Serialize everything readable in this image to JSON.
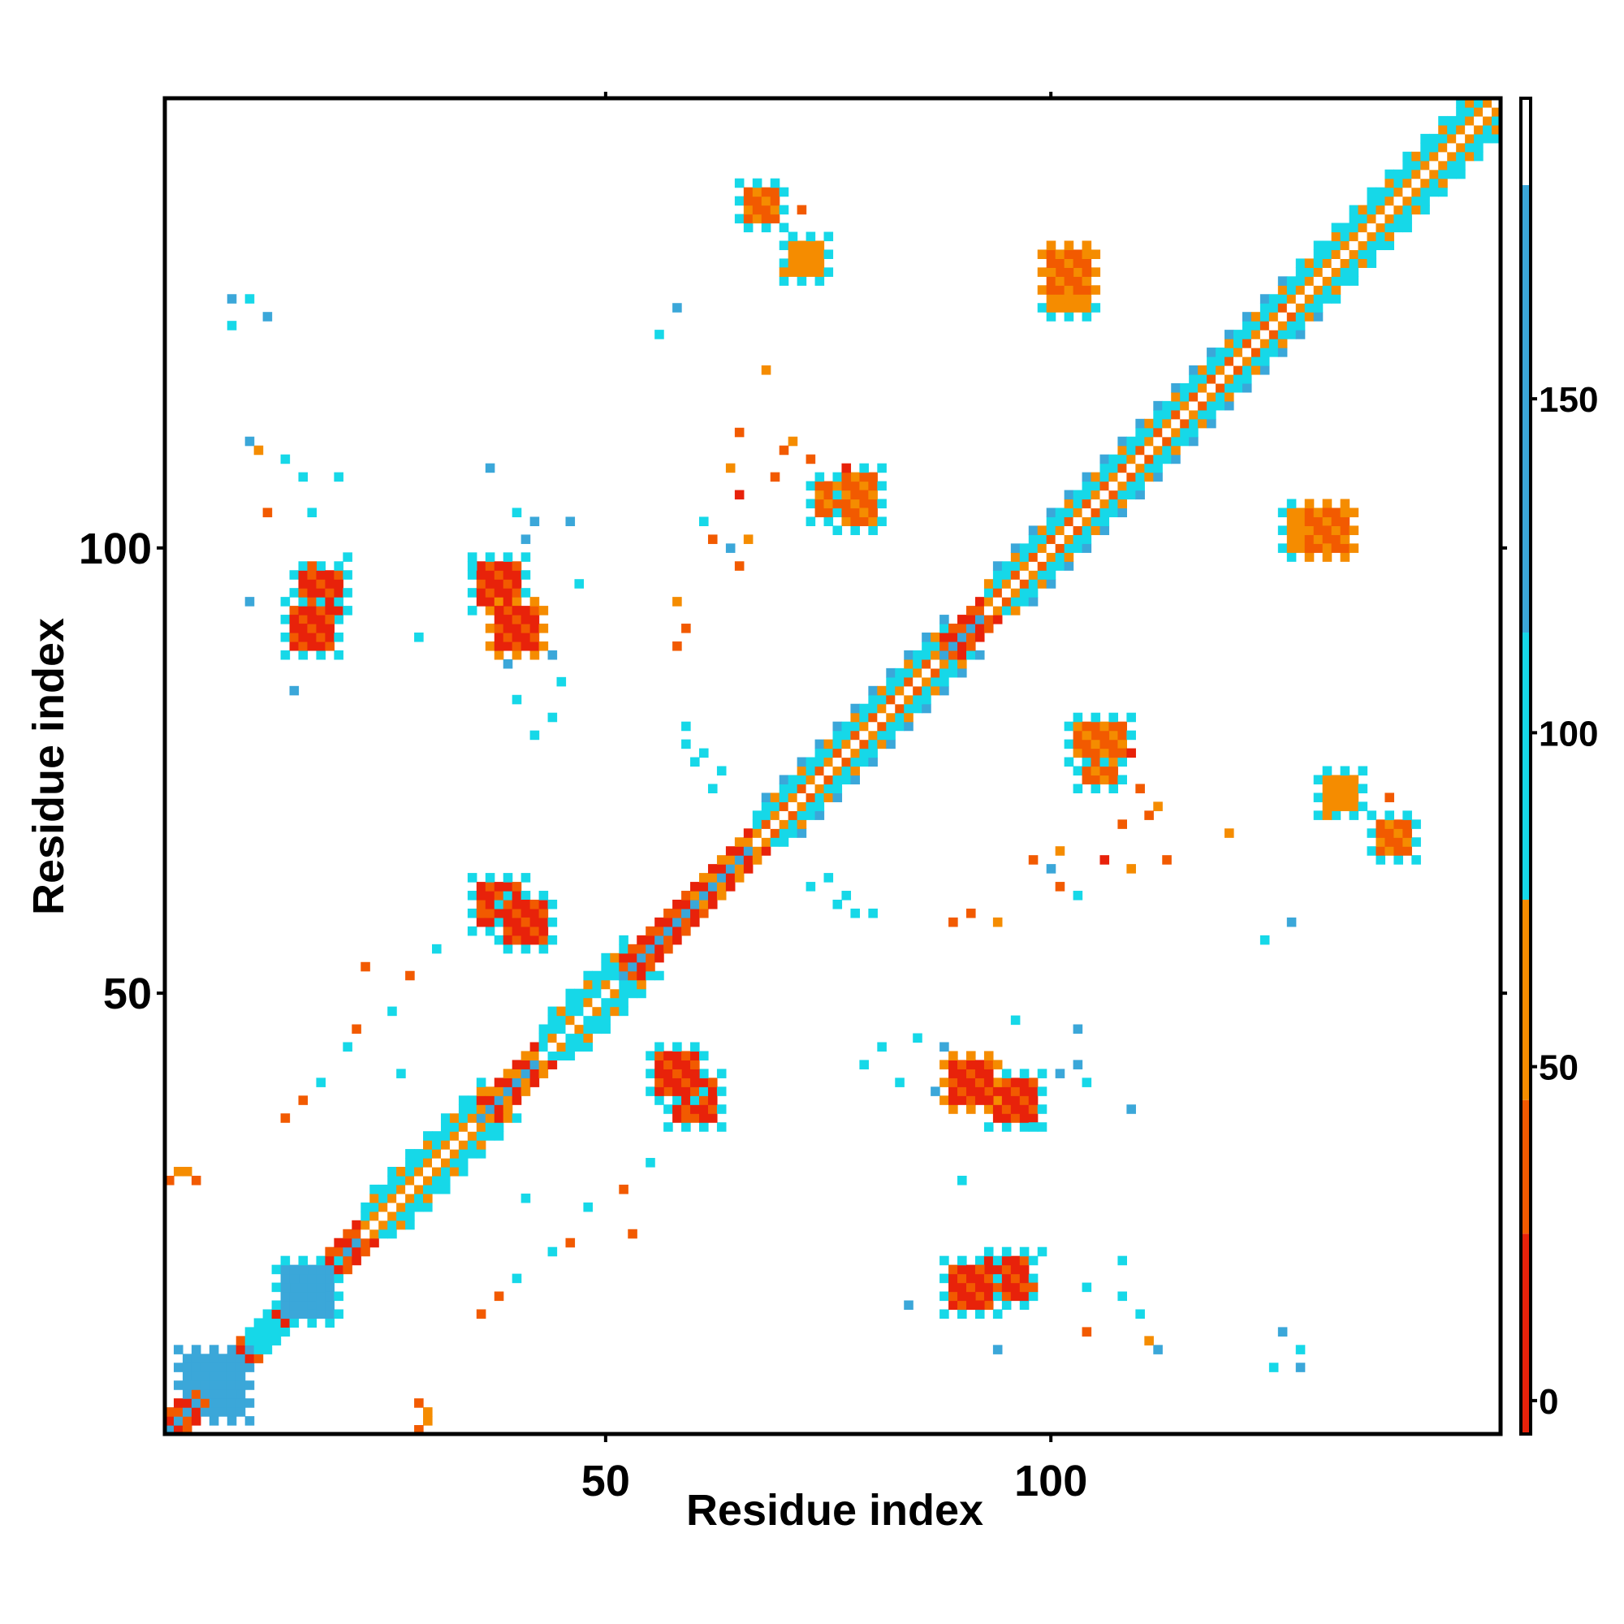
{
  "chart_data": {
    "type": "heatmap",
    "title": "",
    "xlabel": "Residue index",
    "ylabel": "Residue index",
    "xlim": [
      0.5,
      150.5
    ],
    "ylim": [
      0.5,
      150.5
    ],
    "xticks": [
      50,
      100
    ],
    "yticks": [
      50,
      100
    ],
    "symmetric": true,
    "diagonal_band": [
      {
        "from": 1,
        "to": 10,
        "pattern": "alternating",
        "v1": 10,
        "v2": 40
      },
      {
        "from": 10,
        "to": 13,
        "pattern": "fill",
        "v1": 95
      },
      {
        "from": 13,
        "to": 23,
        "pattern": "alternating",
        "v1": 10,
        "v2": 40
      },
      {
        "from": 23,
        "to": 36,
        "pattern": "helix",
        "v1": 50,
        "v2": 100
      },
      {
        "from": 36,
        "to": 43,
        "pattern": "alternating",
        "v1": 20,
        "v2": 55
      },
      {
        "from": 43,
        "to": 52,
        "pattern": "helix",
        "v1": 60,
        "v2": 100
      },
      {
        "from": 52,
        "to": 60,
        "pattern": "alternating",
        "v1": 5,
        "v2": 40
      },
      {
        "from": 60,
        "to": 67,
        "pattern": "alternating",
        "v1": 10,
        "v2": 55
      },
      {
        "from": 67,
        "to": 88,
        "pattern": "helix",
        "v1": 40,
        "v2": 105
      },
      {
        "from": 88,
        "to": 93,
        "pattern": "alternating",
        "v1": 5,
        "v2": 40
      },
      {
        "from": 93,
        "to": 112,
        "pattern": "helix",
        "v1": 40,
        "v2": 105
      },
      {
        "from": 112,
        "to": 128,
        "pattern": "helix",
        "v1": 40,
        "v2": 105
      },
      {
        "from": 128,
        "to": 150,
        "pattern": "helix",
        "v1": 45,
        "v2": 100
      }
    ],
    "off_diagonal_patches": [
      {
        "i0": 16,
        "i1": 20,
        "j0": 93,
        "j1": 97,
        "v": 10,
        "rim": 95
      },
      {
        "i0": 36,
        "i1": 40,
        "j0": 94,
        "j1": 98,
        "v": 10,
        "rim": 90
      },
      {
        "i0": 36,
        "i1": 40,
        "j0": 58,
        "j1": 62,
        "v": 10,
        "rim": 90
      },
      {
        "i0": 56,
        "i1": 60,
        "j0": 39,
        "j1": 43,
        "v": 10,
        "rim": 95
      },
      {
        "i0": 89,
        "i1": 93,
        "j0": 38,
        "j1": 42,
        "v": 10,
        "rim": 60
      },
      {
        "i0": 89,
        "i1": 93,
        "j0": 15,
        "j1": 19,
        "v": 10,
        "rim": 100
      },
      {
        "i0": 66,
        "i1": 69,
        "j0": 137,
        "j1": 140,
        "v": 40,
        "rim": 100
      },
      {
        "i0": 100,
        "i1": 104,
        "j0": 127,
        "j1": 130,
        "v": 45,
        "rim": 100
      },
      {
        "i0": 131,
        "i1": 134,
        "j0": 71,
        "j1": 74,
        "v": 45,
        "rim": 100
      },
      {
        "i0": 129,
        "i1": 133,
        "j0": 100,
        "j1": 104,
        "v": 30,
        "rim": 45
      },
      {
        "i0": 74,
        "i1": 78,
        "j0": 104,
        "j1": 107,
        "v": 40,
        "rim": 90
      },
      {
        "i0": 103,
        "i1": 108,
        "j0": 77,
        "j1": 80,
        "v": 40,
        "rim": 100
      },
      {
        "i0": 6,
        "i1": 9,
        "j0": 3,
        "j1": 9,
        "v": 135,
        "rim": 135
      },
      {
        "i0": 14,
        "i1": 19,
        "j0": 14,
        "j1": 19,
        "v": 130,
        "rim": 100
      }
    ],
    "scattered_contacts": [
      {
        "i": 10,
        "j": 128,
        "v": 100
      },
      {
        "i": 12,
        "j": 126,
        "v": 120
      },
      {
        "i": 11,
        "j": 111,
        "v": 90
      },
      {
        "i": 16,
        "j": 108,
        "v": 105
      },
      {
        "i": 17,
        "j": 104,
        "v": 110
      },
      {
        "i": 10,
        "j": 94,
        "v": 130
      },
      {
        "i": 15,
        "j": 84,
        "v": 120
      },
      {
        "i": 29,
        "j": 90,
        "v": 105
      },
      {
        "i": 42,
        "j": 103,
        "v": 130
      },
      {
        "i": 39,
        "j": 87,
        "v": 120
      },
      {
        "i": 40,
        "j": 83,
        "v": 110
      },
      {
        "i": 44,
        "j": 60,
        "v": 105
      },
      {
        "i": 31,
        "j": 55,
        "v": 110
      },
      {
        "i": 28,
        "j": 52,
        "v": 40
      },
      {
        "i": 58,
        "j": 94,
        "v": 50
      },
      {
        "i": 64,
        "j": 100,
        "v": 130
      },
      {
        "i": 66,
        "j": 101,
        "v": 45
      },
      {
        "i": 71,
        "j": 112,
        "v": 45
      },
      {
        "i": 73,
        "j": 110,
        "v": 40
      },
      {
        "i": 77,
        "j": 109,
        "v": 10
      },
      {
        "i": 65,
        "j": 98,
        "v": 30
      },
      {
        "i": 59,
        "j": 80,
        "v": 110
      },
      {
        "i": 61,
        "j": 77,
        "v": 100
      },
      {
        "i": 63,
        "j": 75,
        "v": 105
      },
      {
        "i": 73,
        "j": 62,
        "v": 100
      },
      {
        "i": 76,
        "j": 60,
        "v": 110
      },
      {
        "i": 78,
        "j": 59,
        "v": 95
      },
      {
        "i": 89,
        "j": 58,
        "v": 40
      },
      {
        "i": 91,
        "j": 59,
        "v": 30
      },
      {
        "i": 101,
        "j": 62,
        "v": 30
      },
      {
        "i": 103,
        "j": 61,
        "v": 95
      },
      {
        "i": 106,
        "j": 65,
        "v": 10
      },
      {
        "i": 109,
        "j": 64,
        "v": 45
      },
      {
        "i": 108,
        "j": 69,
        "v": 40
      },
      {
        "i": 111,
        "j": 70,
        "v": 25
      },
      {
        "i": 113,
        "j": 65,
        "v": 40
      },
      {
        "i": 120,
        "j": 68,
        "v": 45
      },
      {
        "i": 131,
        "j": 70,
        "v": 45
      },
      {
        "i": 138,
        "j": 72,
        "v": 40
      },
      {
        "i": 137,
        "j": 67,
        "v": 45
      },
      {
        "i": 127,
        "j": 58,
        "v": 120
      },
      {
        "i": 124,
        "j": 56,
        "v": 105
      },
      {
        "i": 101,
        "j": 41,
        "v": 120
      },
      {
        "i": 104,
        "j": 40,
        "v": 95
      },
      {
        "i": 109,
        "j": 37,
        "v": 130
      },
      {
        "i": 98,
        "j": 35,
        "v": 110
      },
      {
        "i": 103,
        "j": 46,
        "v": 130
      },
      {
        "i": 96,
        "j": 47,
        "v": 95
      },
      {
        "i": 79,
        "j": 42,
        "v": 100
      },
      {
        "i": 81,
        "j": 44,
        "v": 110
      },
      {
        "i": 85,
        "j": 45,
        "v": 105
      },
      {
        "i": 88,
        "j": 44,
        "v": 130
      },
      {
        "i": 94,
        "j": 16,
        "v": 95
      },
      {
        "i": 99,
        "j": 21,
        "v": 100
      },
      {
        "i": 108,
        "j": 20,
        "v": 110
      },
      {
        "i": 110,
        "j": 14,
        "v": 105
      },
      {
        "i": 112,
        "j": 10,
        "v": 115
      },
      {
        "i": 125,
        "j": 8,
        "v": 110
      },
      {
        "i": 128,
        "j": 8,
        "v": 120
      },
      {
        "i": 111,
        "j": 11,
        "v": 45
      },
      {
        "i": 104,
        "j": 12,
        "v": 40
      },
      {
        "i": 98,
        "j": 17,
        "v": 40
      },
      {
        "i": 29,
        "j": 4,
        "v": 40
      },
      {
        "i": 30,
        "j": 2,
        "v": 45
      },
      {
        "i": 1,
        "j": 29,
        "v": 40
      },
      {
        "i": 3,
        "j": 30,
        "v": 45
      },
      {
        "i": 53,
        "j": 23,
        "v": 30
      },
      {
        "i": 59,
        "j": 36,
        "v": 40
      },
      {
        "i": 40,
        "j": 18,
        "v": 100
      },
      {
        "i": 36,
        "j": 14,
        "v": 40
      },
      {
        "i": 38,
        "j": 16,
        "v": 30
      },
      {
        "i": 44,
        "j": 21,
        "v": 95
      },
      {
        "i": 48,
        "j": 26,
        "v": 100
      },
      {
        "i": 46,
        "j": 22,
        "v": 30
      },
      {
        "i": 41,
        "j": 27,
        "v": 105
      }
    ],
    "colorbar": {
      "range": [
        -5,
        195
      ],
      "ticks": [
        0,
        50,
        100,
        150
      ],
      "bands": [
        {
          "from": -5,
          "to": 25,
          "color": "#e8220a"
        },
        {
          "from": 25,
          "to": 45,
          "color": "#f25a00"
        },
        {
          "from": 45,
          "to": 75,
          "color": "#f58c00"
        },
        {
          "from": 75,
          "to": 115,
          "color": "#16d8e8"
        },
        {
          "from": 115,
          "to": 182,
          "color": "#3ba7d9"
        },
        {
          "from": 182,
          "to": 195,
          "color": "#ffffff"
        }
      ]
    }
  }
}
